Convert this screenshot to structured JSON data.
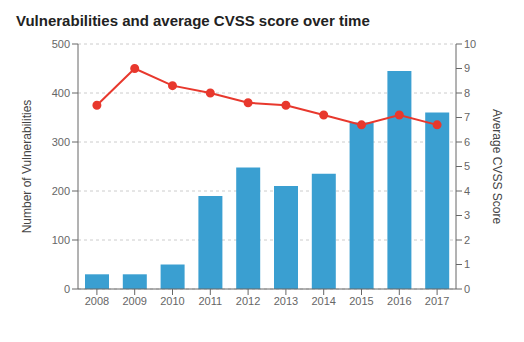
{
  "chart_data": {
    "type": "bar",
    "title": "Vulnerabilities and average CVSS score over time",
    "categories": [
      "2008",
      "2009",
      "2010",
      "2011",
      "2012",
      "2013",
      "2014",
      "2015",
      "2016",
      "2017"
    ],
    "series": [
      {
        "type": "bar",
        "color": "#3a9fd1",
        "values": [
          30,
          30,
          50,
          190,
          248,
          210,
          235,
          340,
          445,
          360
        ]
      },
      {
        "type": "line",
        "color": "#e8382d",
        "marker": "circle",
        "axis": "y2",
        "values": [
          7.5,
          9.0,
          8.3,
          8.0,
          7.6,
          7.5,
          7.1,
          6.7,
          7.1,
          6.7
        ]
      }
    ],
    "y_label": "Number of Vulnerabilities",
    "y2_label": "Average CVSS Score",
    "ylim": [
      0,
      500
    ],
    "yticks": [
      0,
      100,
      200,
      300,
      400,
      500
    ],
    "y2lim": [
      0,
      10
    ],
    "y2ticks": [
      0,
      1,
      2,
      3,
      4,
      5,
      6,
      7,
      8,
      9,
      10
    ],
    "grid": true
  }
}
